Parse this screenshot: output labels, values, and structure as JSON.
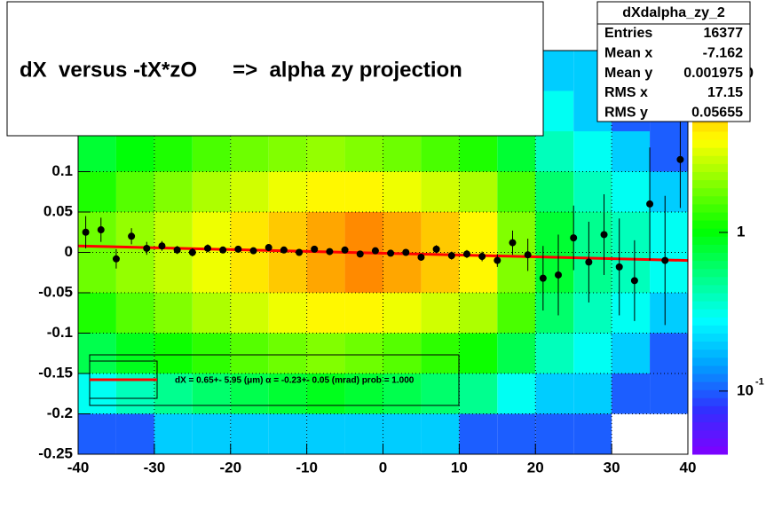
{
  "chart_data": {
    "type": "profile2d",
    "title": "dX  versus -tX*zO      =>  alpha zy projection",
    "xlim": [
      -40,
      40
    ],
    "ylim": [
      -0.25,
      0.25
    ],
    "xticks": [
      -40,
      -30,
      -20,
      -10,
      0,
      10,
      20,
      30,
      40
    ],
    "yticks": [
      -0.25,
      -0.2,
      -0.15,
      -0.1,
      -0.05,
      0,
      0.05,
      0.1
    ],
    "grid": true,
    "zlim": [
      0.04,
      14
    ],
    "log_z": true,
    "zticks": [
      {
        "value": 0.1,
        "label": "10",
        "sup": "-1"
      },
      1,
      10
    ],
    "palette": [
      "#8000ff",
      "#3030ff",
      "#00a0ff",
      "#00ffff",
      "#00ff80",
      "#00ff00",
      "#80ff00",
      "#ffff00",
      "#ffa000",
      "#ff0000"
    ],
    "xbins": [
      -40,
      -35,
      -30,
      -25,
      -20,
      -15,
      -10,
      -5,
      0,
      5,
      10,
      15,
      20,
      25,
      30,
      35,
      40
    ],
    "ybins": [
      0.25,
      0.2,
      0.15,
      0.1,
      0.05,
      0,
      -0.05,
      -0.1,
      -0.15,
      -0.2,
      -0.25
    ],
    "z": [
      [
        0.3,
        0.3,
        0.4,
        0.4,
        0.5,
        0.5,
        0.5,
        0.5,
        0.5,
        0.4,
        0.4,
        0.3,
        0.2,
        0.2,
        0.1,
        0.1
      ],
      [
        0.5,
        0.6,
        0.7,
        0.8,
        0.9,
        1,
        1,
        1,
        0.9,
        0.8,
        0.7,
        0.5,
        0.3,
        0.2,
        0.1,
        0.1
      ],
      [
        0.8,
        1,
        1.2,
        1.5,
        1.8,
        2,
        2.2,
        2,
        1.8,
        1.5,
        1.2,
        0.8,
        0.4,
        0.3,
        0.2,
        0.1
      ],
      [
        1.2,
        1.6,
        2,
        2.5,
        3,
        3.5,
        4,
        4,
        3.5,
        3,
        2.5,
        1.5,
        0.6,
        0.4,
        0.3,
        0.2
      ],
      [
        1.8,
        2.2,
        2.8,
        3.5,
        4.5,
        5.5,
        7,
        8,
        7,
        5.5,
        4,
        2,
        0.8,
        0.5,
        0.4,
        0.3
      ],
      [
        1.8,
        2.2,
        2.8,
        3.5,
        4.5,
        5.5,
        7,
        8,
        7,
        5.5,
        4,
        2,
        0.8,
        0.5,
        0.4,
        0.3
      ],
      [
        1.2,
        1.6,
        2,
        2.5,
        3,
        3.5,
        4,
        4,
        3.5,
        3,
        2.5,
        1.5,
        0.6,
        0.4,
        0.3,
        0.2
      ],
      [
        0.7,
        0.9,
        1.1,
        1.3,
        1.6,
        1.8,
        2,
        1.8,
        1.6,
        1.3,
        1.1,
        0.7,
        0.4,
        0.3,
        0.2,
        0.1
      ],
      [
        0.3,
        0.4,
        0.5,
        0.6,
        0.7,
        0.8,
        0.9,
        0.8,
        0.7,
        0.6,
        0.5,
        0.3,
        0.2,
        0.2,
        0.1,
        0.1
      ],
      [
        0.1,
        0.1,
        0.2,
        0.2,
        0.2,
        0.2,
        0.2,
        0.2,
        0.2,
        0.2,
        0.1,
        0.1,
        0.1,
        0.1,
        0,
        0
      ]
    ],
    "profile": {
      "color": "#000000",
      "x": [
        -39,
        -37,
        -35,
        -33,
        -31,
        -29,
        -27,
        -25,
        -23,
        -21,
        -19,
        -17,
        -15,
        -13,
        -11,
        -9,
        -7,
        -5,
        -3,
        -1,
        1,
        3,
        5,
        7,
        9,
        11,
        13,
        15,
        17,
        19,
        21,
        23,
        25,
        27,
        29,
        31,
        33,
        35,
        37,
        39
      ],
      "values": [
        0.025,
        0.028,
        -0.008,
        0.02,
        0.005,
        0.008,
        0.003,
        0.0,
        0.005,
        0.003,
        0.004,
        0.002,
        0.006,
        0.003,
        0.0,
        0.004,
        0.001,
        0.003,
        -0.002,
        0.002,
        -0.001,
        0.0,
        -0.006,
        0.004,
        -0.004,
        -0.002,
        -0.005,
        -0.01,
        0.012,
        -0.003,
        -0.032,
        -0.028,
        0.018,
        -0.012,
        0.022,
        -0.018,
        -0.035,
        0.06,
        -0.01,
        0.115
      ],
      "errors": [
        0.02,
        0.015,
        0.012,
        0.01,
        0.008,
        0.006,
        0.005,
        0.005,
        0.005,
        0.004,
        0.004,
        0.004,
        0.004,
        0.004,
        0.004,
        0.004,
        0.004,
        0.004,
        0.004,
        0.004,
        0.004,
        0.004,
        0.004,
        0.005,
        0.005,
        0.005,
        0.006,
        0.008,
        0.015,
        0.02,
        0.04,
        0.05,
        0.04,
        0.05,
        0.05,
        0.06,
        0.05,
        0.07,
        0.08,
        0.06
      ]
    },
    "fit": {
      "x": [
        -40,
        40
      ],
      "y": [
        0.008,
        -0.01
      ],
      "color": "#ff0000"
    },
    "legend_text": "dX =    0.65+- 5.95 (μm) α =   -0.23+- 0.05 (mrad) prob = 1.000",
    "stats": {
      "name": "dXdalpha_zy_2",
      "labels": [
        "Entries",
        "Mean x",
        "Mean y",
        "RMS x",
        "RMS y"
      ],
      "values": [
        16377,
        -7.162,
        0.001975,
        17.15,
        0.05655
      ]
    }
  }
}
